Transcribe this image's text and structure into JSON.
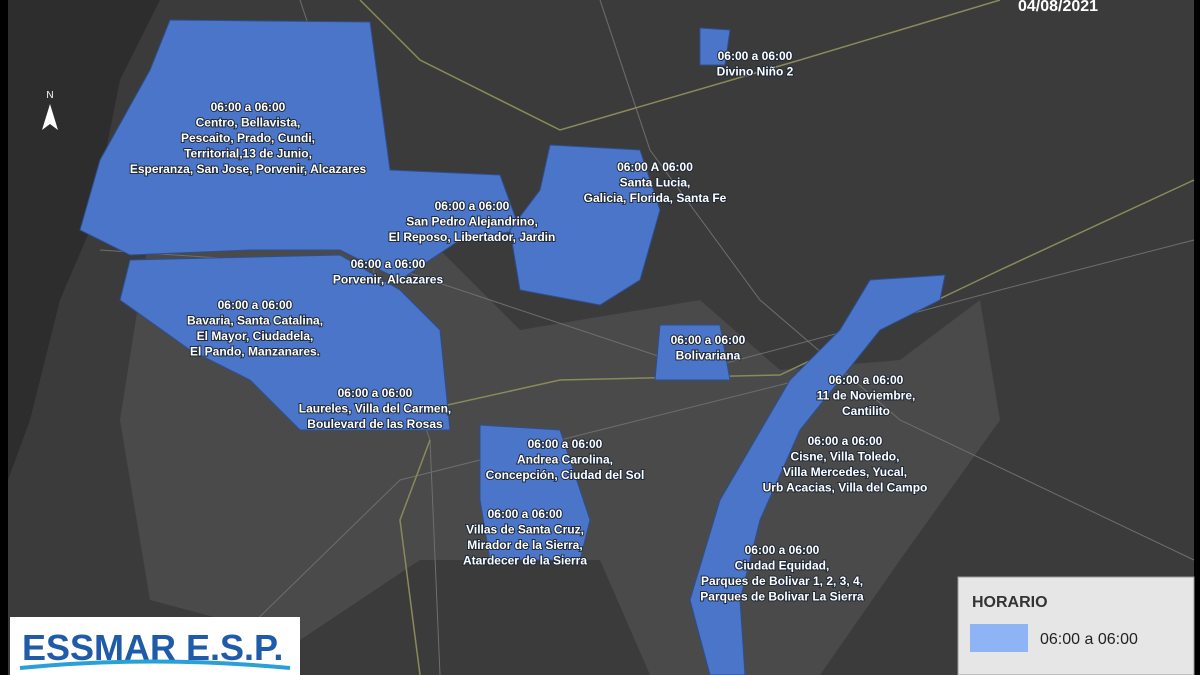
{
  "header": {
    "date": "04/08/2021"
  },
  "north": "N",
  "zones": [
    {
      "schedule": "06:00 a 06:00",
      "lines": [
        "Divino Niño 2"
      ]
    },
    {
      "schedule": "06:00 a 06:00",
      "lines": [
        "Centro, Bellavista,",
        "Pescaito, Prado, Cundi,",
        "Territorial,13 de Junio,",
        "Esperanza, San Jose, Porvenir, Alcazares"
      ]
    },
    {
      "schedule": "06:00 A 06:00",
      "lines": [
        "Santa Lucia,",
        "Galicia, Florida, Santa Fe"
      ]
    },
    {
      "schedule": "06:00 a 06:00",
      "lines": [
        "San Pedro Alejandrino,",
        "El Reposo, Libertador, Jardin"
      ]
    },
    {
      "schedule": "06:00 a 06:00",
      "lines": [
        "Porvenir, Alcazares"
      ]
    },
    {
      "schedule": "06:00 a 06:00",
      "lines": [
        "Bavaria, Santa Catalina,",
        "El Mayor, Ciudadela,",
        "El Pando, Manzanares."
      ]
    },
    {
      "schedule": "06:00 a 06:00",
      "lines": [
        "Bolivariana"
      ]
    },
    {
      "schedule": "06:00 a 06:00",
      "lines": [
        "Laureles, Villa del Carmen,",
        "Boulevard de las Rosas"
      ]
    },
    {
      "schedule": "06:00 a 06:00",
      "lines": [
        "11 de Noviembre,",
        "Cantilito"
      ]
    },
    {
      "schedule": "06:00 a 06:00",
      "lines": [
        "Cisne, Villa Toledo,",
        "Villa Mercedes, Yucal,",
        "Urb Acacias, Villa del Campo"
      ]
    },
    {
      "schedule": "06:00 a 06:00",
      "lines": [
        "Andrea Carolina,",
        "Concepción, Ciudad del Sol"
      ]
    },
    {
      "schedule": "06:00 a 06:00",
      "lines": [
        "Villas de Santa Cruz,",
        "Mirador de la Sierra,",
        "Atardecer de la Sierra"
      ]
    },
    {
      "schedule": "06:00 a 06:00",
      "lines": [
        "Ciudad Equidad,",
        "Parques de Bolivar 1, 2, 3, 4,",
        "Parques de Bolivar La Sierra"
      ]
    }
  ],
  "legend": {
    "title": "HORARIO",
    "entries": [
      "06:00 a 06:00"
    ]
  },
  "logo": "ESSMAR E.S.P."
}
